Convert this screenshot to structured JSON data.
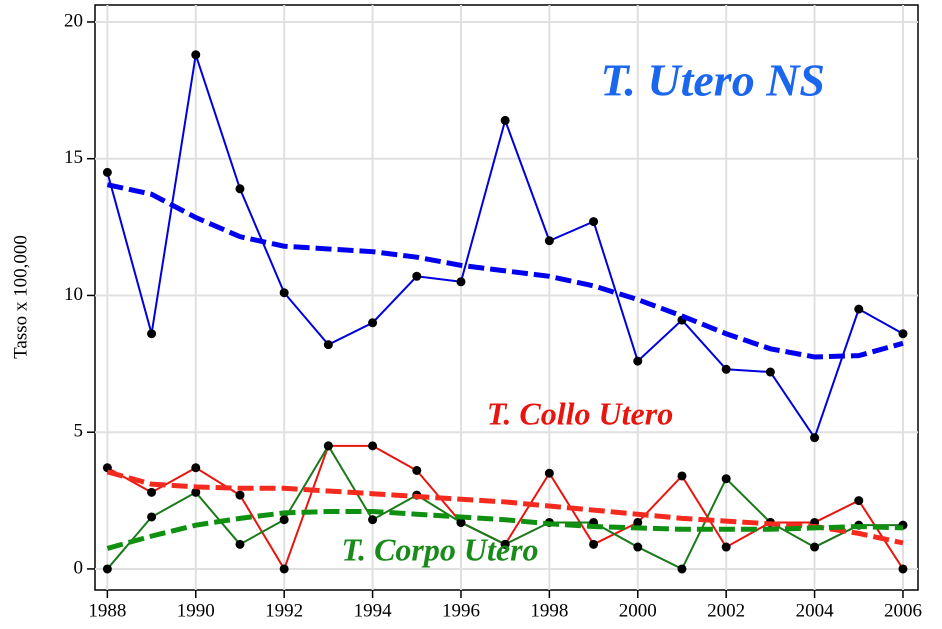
{
  "chart_data": {
    "type": "line",
    "ylabel": "Tasso x 100,000",
    "x": [
      1988,
      1989,
      1990,
      1991,
      1992,
      1993,
      1994,
      1995,
      1996,
      1997,
      1998,
      1999,
      2000,
      2001,
      2002,
      2003,
      2004,
      2005,
      2006
    ],
    "series": [
      {
        "name": "T. Utero NS",
        "color": "#0000dd",
        "label_color": "#1a66ee",
        "trend_color": "#0000ee",
        "values": [
          14.5,
          8.6,
          18.8,
          13.9,
          10.1,
          8.2,
          9.0,
          10.7,
          10.5,
          16.4,
          12.0,
          12.7,
          7.6,
          9.1,
          7.3,
          7.2,
          4.8,
          9.5,
          8.6
        ],
        "trend": [
          14.05,
          13.7,
          12.85,
          12.15,
          11.8,
          11.7,
          11.6,
          11.4,
          11.1,
          10.9,
          10.7,
          10.35,
          9.85,
          9.25,
          8.6,
          8.05,
          7.75,
          7.8,
          8.25
        ]
      },
      {
        "name": "T. Collo Utero",
        "color": "#e8150f",
        "label_color": "#e8150f",
        "trend_color": "#f52a1f",
        "values": [
          3.7,
          2.8,
          3.7,
          2.7,
          0,
          4.5,
          4.5,
          3.6,
          1.7,
          0.9,
          3.5,
          0.9,
          1.7,
          3.4,
          0.8,
          1.7,
          1.7,
          2.5,
          0
        ],
        "trend": [
          3.55,
          3.1,
          3.0,
          2.95,
          2.95,
          2.85,
          2.75,
          2.65,
          2.55,
          2.45,
          2.3,
          2.15,
          2.0,
          1.85,
          1.75,
          1.65,
          1.55,
          1.3,
          0.95
        ]
      },
      {
        "name": "T. Corpo Utero",
        "color": "#1a7a1a",
        "label_color": "#1a8a1a",
        "trend_color": "#109010",
        "values": [
          0,
          1.9,
          2.8,
          0.9,
          1.8,
          4.5,
          1.8,
          2.7,
          1.7,
          0.9,
          1.7,
          1.7,
          0.8,
          0,
          3.3,
          1.7,
          0.8,
          1.6,
          1.6
        ],
        "trend": [
          0.75,
          1.2,
          1.6,
          1.85,
          2.05,
          2.1,
          2.1,
          2.0,
          1.9,
          1.8,
          1.65,
          1.55,
          1.5,
          1.45,
          1.45,
          1.45,
          1.5,
          1.55,
          1.5
        ]
      }
    ],
    "xlim": [
      1987.72,
      2006.34
    ],
    "xticks": [
      1988,
      1990,
      1992,
      1994,
      1996,
      1998,
      2000,
      2002,
      2004,
      2006
    ],
    "ylim": [
      -0.77,
      20.62
    ],
    "yticks": [
      0,
      5,
      10,
      15,
      20
    ],
    "grid": true
  }
}
